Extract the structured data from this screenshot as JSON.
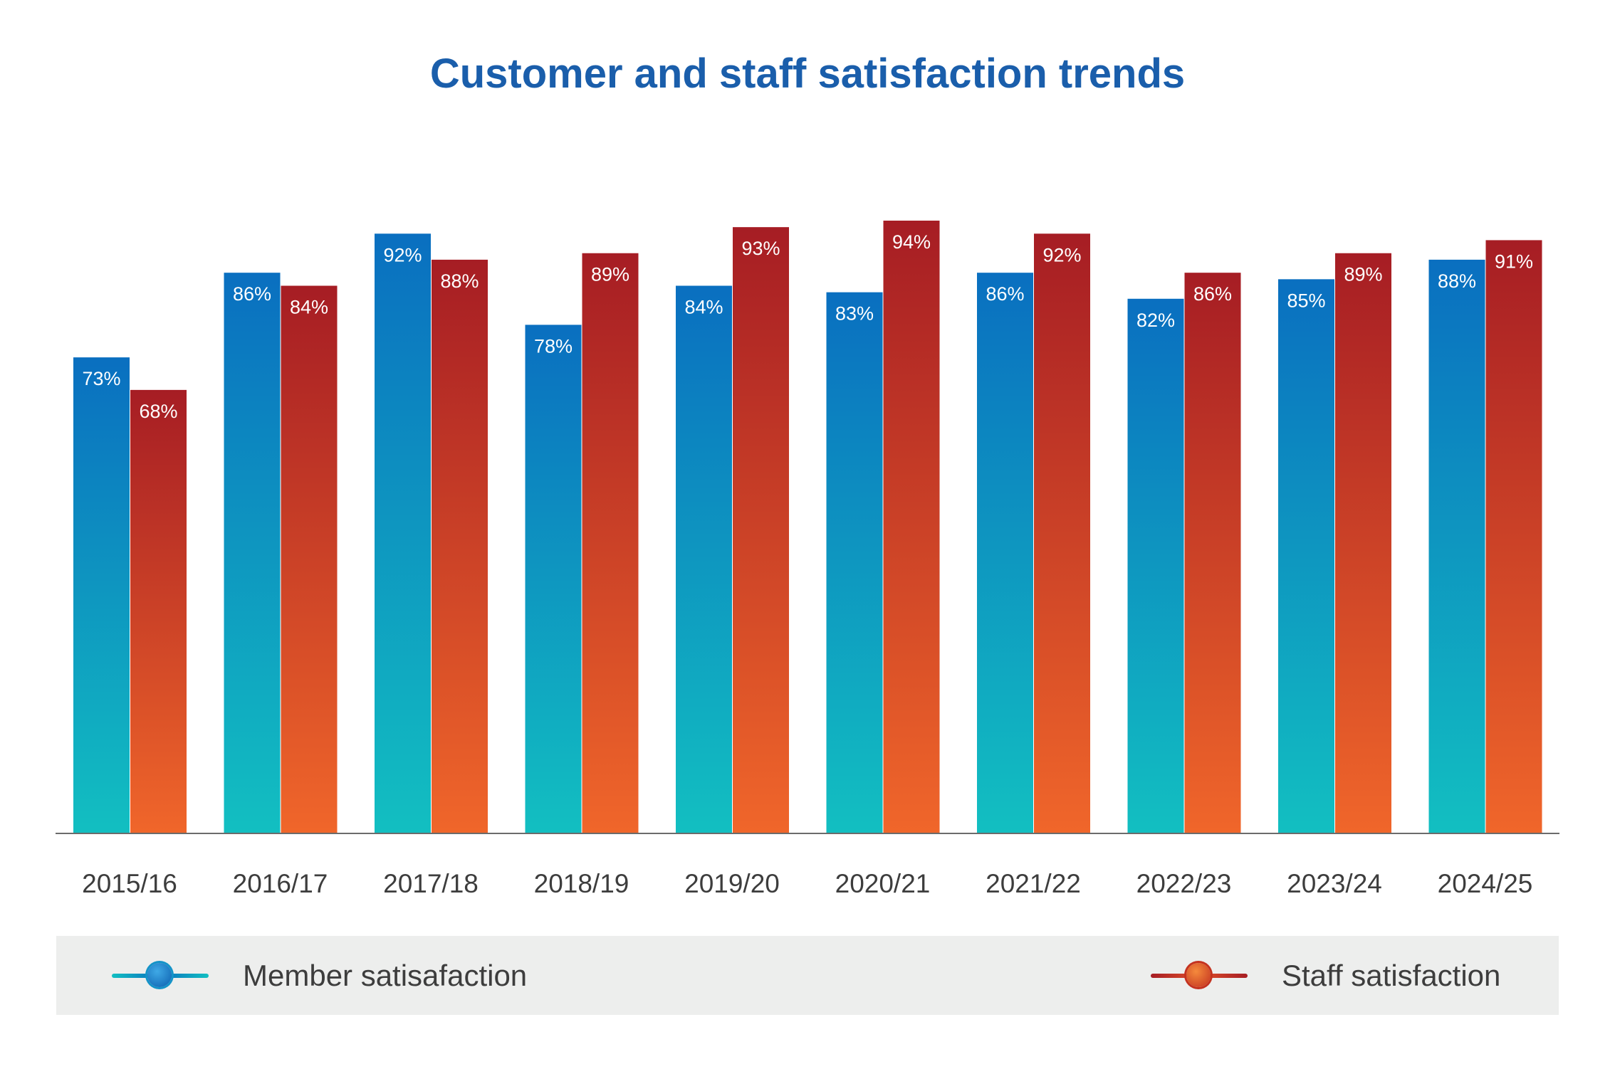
{
  "chart_data": {
    "type": "bar",
    "title": "Customer and staff satisfaction trends",
    "categories": [
      "2015/16",
      "2016/17",
      "2017/18",
      "2018/19",
      "2019/20",
      "2020/21",
      "2021/22",
      "2022/23",
      "2023/24",
      "2024/25"
    ],
    "series": [
      {
        "name": "Member satisafaction",
        "values": [
          73,
          86,
          92,
          78,
          84,
          83,
          86,
          82,
          85,
          88
        ],
        "labels": [
          "73%",
          "86%",
          "92%",
          "78%",
          "84%",
          "83%",
          "86%",
          "82%",
          "85%",
          "88%"
        ],
        "color_top": "#0a6fc0",
        "color_bottom": "#12bfc1"
      },
      {
        "name": "Staff satisfaction",
        "values": [
          68,
          84,
          88,
          89,
          93,
          94,
          92,
          86,
          89,
          91
        ],
        "labels": [
          "68%",
          "84%",
          "88%",
          "89%",
          "93%",
          "94%",
          "92%",
          "86%",
          "89%",
          "91%"
        ],
        "color_top": "#a61d24",
        "color_bottom": "#f0662a"
      }
    ],
    "ylim": [
      0,
      100
    ],
    "grid": false,
    "legend_position": "bottom"
  },
  "colors": {
    "title": "#1a5eab",
    "axis": "#6b6b6b",
    "tick_label": "#3d3d3d",
    "data_label": "#ffffff",
    "legend_background": "#edeeed"
  }
}
